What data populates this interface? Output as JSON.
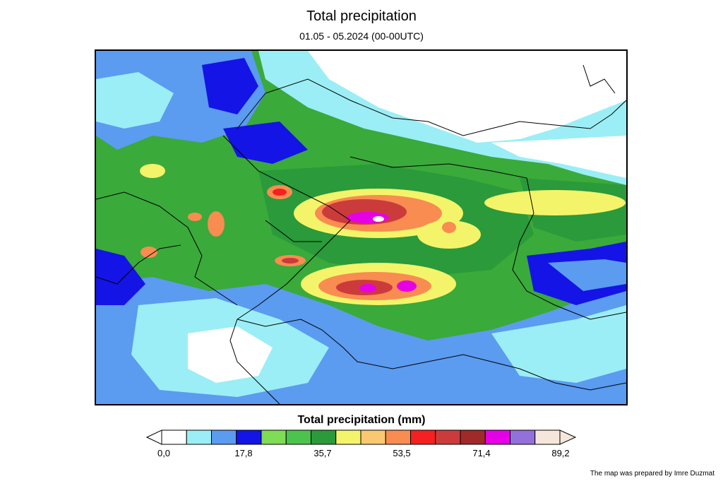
{
  "header": {
    "title": "Total precipitation",
    "subtitle": "01.05 - 05.2024 (00-00UTC)"
  },
  "legend": {
    "title": "Total precipitation (mm)",
    "colors": [
      "#ffffff",
      "#9beef5",
      "#5b9bf0",
      "#1414e6",
      "#7fdc55",
      "#4cc34c",
      "#2a9a3a",
      "#f4f46a",
      "#f9c870",
      "#f98c50",
      "#f52020",
      "#cc3b3b",
      "#a02a2a",
      "#e600e6",
      "#9370db",
      "#f5e6dc"
    ],
    "tick_labels": [
      "0,0",
      "17,8",
      "35,7",
      "53,5",
      "71,4",
      "89,2"
    ]
  },
  "footer": {
    "credit": "The map was prepared by  Imre Duzmat"
  }
}
